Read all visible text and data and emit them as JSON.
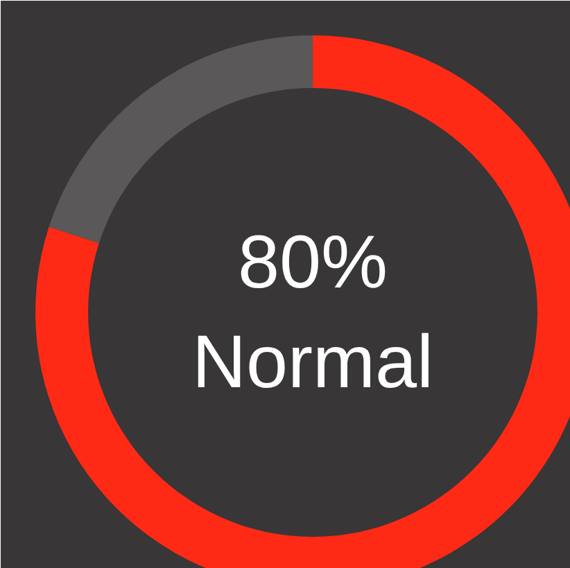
{
  "chart_data": {
    "type": "donut",
    "categories": [
      null,
      null
    ],
    "values": [
      80,
      20
    ],
    "colors": [
      "#ff2a16",
      "#5a5858"
    ],
    "annotations": [
      "80%",
      "Normal"
    ]
  }
}
